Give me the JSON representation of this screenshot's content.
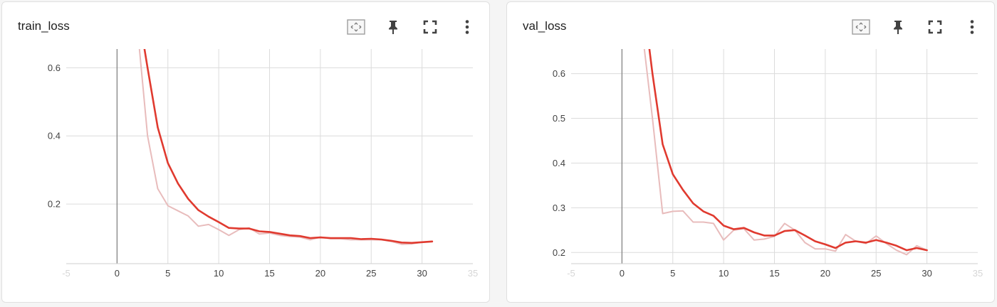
{
  "panels": [
    {
      "title": "train_loss",
      "toolbar": [
        {
          "name": "fit-domain-icon"
        },
        {
          "name": "pin-icon"
        },
        {
          "name": "fullscreen-icon"
        },
        {
          "name": "more-vert-icon"
        }
      ]
    },
    {
      "title": "val_loss",
      "toolbar": [
        {
          "name": "fit-domain-icon"
        },
        {
          "name": "pin-icon"
        },
        {
          "name": "fullscreen-icon"
        },
        {
          "name": "more-vert-icon"
        }
      ]
    }
  ],
  "chart_data": [
    {
      "type": "line",
      "title": "train_loss",
      "xlim": [
        -5,
        35
      ],
      "ylim": [
        0.025,
        0.655
      ],
      "x_ticks": [
        "-5",
        "0",
        "5",
        "10",
        "15",
        "20",
        "25",
        "30",
        "35"
      ],
      "x_ticks_faint": [
        "-5",
        "35"
      ],
      "y_ticks": [
        "0.2",
        "0.4",
        "0.6"
      ],
      "grid": true,
      "series": [
        {
          "role": "raw",
          "color": "#e8bcbc",
          "x": [
            2.2,
            3,
            4,
            5,
            6,
            7,
            8,
            9,
            10,
            11,
            12,
            13,
            14,
            15,
            16,
            17,
            18,
            19,
            20,
            21,
            22,
            23,
            24,
            25,
            26,
            27,
            28,
            29,
            30,
            31
          ],
          "y": [
            0.655,
            0.4,
            0.245,
            0.195,
            0.18,
            0.165,
            0.135,
            0.14,
            0.125,
            0.108,
            0.125,
            0.13,
            0.112,
            0.115,
            0.108,
            0.105,
            0.103,
            0.095,
            0.103,
            0.098,
            0.098,
            0.095,
            0.095,
            0.095,
            0.095,
            0.09,
            0.082,
            0.083,
            0.088,
            0.09
          ]
        },
        {
          "role": "smoothed",
          "color": "#e03a2f",
          "x": [
            2.7,
            3,
            4,
            5,
            6,
            7,
            8,
            9,
            10,
            11,
            12,
            13,
            14,
            15,
            16,
            17,
            18,
            19,
            20,
            21,
            22,
            23,
            24,
            25,
            26,
            27,
            28,
            29,
            30,
            31
          ],
          "y": [
            0.655,
            0.6,
            0.425,
            0.32,
            0.26,
            0.215,
            0.182,
            0.163,
            0.147,
            0.13,
            0.128,
            0.128,
            0.12,
            0.118,
            0.113,
            0.108,
            0.106,
            0.1,
            0.102,
            0.1,
            0.1,
            0.1,
            0.097,
            0.098,
            0.096,
            0.092,
            0.087,
            0.086,
            0.088,
            0.09
          ]
        }
      ]
    },
    {
      "type": "line",
      "title": "val_loss",
      "xlim": [
        -5,
        35
      ],
      "ylim": [
        0.175,
        0.655
      ],
      "x_ticks": [
        "-5",
        "0",
        "5",
        "10",
        "15",
        "20",
        "25",
        "30",
        "35"
      ],
      "x_ticks_faint": [
        "-5",
        "35"
      ],
      "y_ticks": [
        "0.2",
        "0.3",
        "0.4",
        "0.5",
        "0.6"
      ],
      "grid": true,
      "series": [
        {
          "role": "raw",
          "color": "#e8bcbc",
          "x": [
            2.2,
            3,
            4,
            5,
            6,
            7,
            8,
            9,
            10,
            11,
            12,
            13,
            14,
            15,
            16,
            17,
            18,
            19,
            20,
            21,
            22,
            23,
            24,
            25,
            26,
            27,
            28,
            29,
            30
          ],
          "y": [
            0.655,
            0.5,
            0.287,
            0.292,
            0.293,
            0.268,
            0.268,
            0.265,
            0.228,
            0.25,
            0.253,
            0.228,
            0.23,
            0.236,
            0.265,
            0.25,
            0.222,
            0.208,
            0.208,
            0.203,
            0.24,
            0.225,
            0.22,
            0.237,
            0.22,
            0.205,
            0.195,
            0.215,
            0.205
          ]
        },
        {
          "role": "smoothed",
          "color": "#e03a2f",
          "x": [
            2.7,
            3,
            4,
            5,
            6,
            7,
            8,
            9,
            10,
            11,
            12,
            13,
            14,
            15,
            16,
            17,
            18,
            19,
            20,
            21,
            22,
            23,
            24,
            25,
            26,
            27,
            28,
            29,
            30
          ],
          "y": [
            0.655,
            0.6,
            0.442,
            0.375,
            0.34,
            0.31,
            0.292,
            0.282,
            0.26,
            0.252,
            0.255,
            0.245,
            0.238,
            0.238,
            0.248,
            0.25,
            0.238,
            0.225,
            0.218,
            0.21,
            0.222,
            0.225,
            0.222,
            0.228,
            0.222,
            0.215,
            0.205,
            0.21,
            0.205
          ]
        }
      ]
    }
  ]
}
